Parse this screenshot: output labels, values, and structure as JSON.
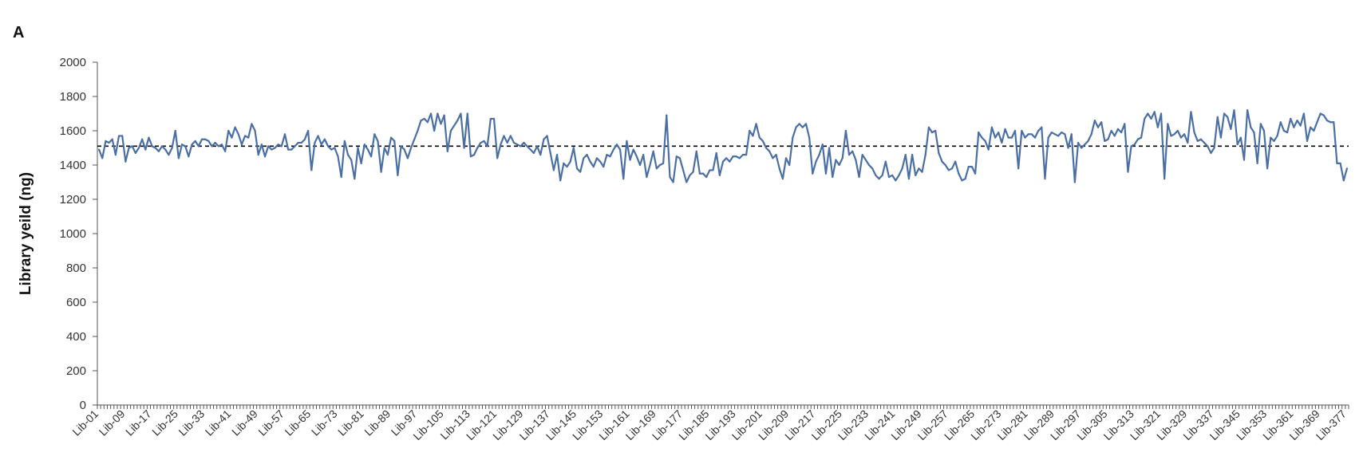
{
  "panel_label": "A",
  "colors": {
    "series": "#4a6fa5",
    "reference_line": "#000000",
    "axis": "#555555"
  },
  "chart_data": {
    "type": "line",
    "title": "",
    "xlabel": "",
    "ylabel": "Library yeild (ng)",
    "ylim": [
      0,
      2000
    ],
    "yticks": [
      0,
      200,
      400,
      600,
      800,
      1000,
      1200,
      1400,
      1600,
      1800,
      2000
    ],
    "grid": false,
    "legend": "none",
    "x_tick_labels": [
      "Lib-01",
      "Lib-09",
      "Lib-17",
      "Lib-25",
      "Lib-33",
      "Lib-41",
      "Lib-49",
      "Lib-57",
      "Lib-65",
      "Lib-73",
      "Lib-81",
      "Lib-89",
      "Lib-97",
      "Lib-105",
      "Lib-113",
      "Lib-121",
      "Lib-129",
      "Lib-137",
      "Lib-145",
      "Lib-153",
      "Lib-161",
      "Lib-169",
      "Lib-177",
      "Lib-185",
      "Lib-193",
      "Lib-201",
      "Lib-209",
      "Lib-217",
      "Lib-225",
      "Lib-233",
      "Lib-241",
      "Lib-249",
      "Lib-257",
      "Lib-265",
      "Lib-273",
      "Lib-281",
      "Lib-289",
      "Lib-297",
      "Lib-305",
      "Lib-313",
      "Lib-321",
      "Lib-329",
      "Lib-337",
      "Lib-345",
      "Lib-353",
      "Lib-361",
      "Lib-369",
      "Lib-377"
    ],
    "reference_line": {
      "y": 1510,
      "style": "dashed"
    },
    "series": [
      {
        "values": [
          1490,
          1440,
          1540,
          1530,
          1550,
          1460,
          1570,
          1570,
          1420,
          1500,
          1510,
          1470,
          1500,
          1550,
          1490,
          1560,
          1510,
          1500,
          1480,
          1510,
          1490,
          1460,
          1500,
          1600,
          1440,
          1520,
          1510,
          1450,
          1520,
          1540,
          1510,
          1550,
          1550,
          1540,
          1510,
          1530,
          1510,
          1520,
          1480,
          1600,
          1560,
          1620,
          1580,
          1520,
          1570,
          1560,
          1640,
          1600,
          1460,
          1520,
          1450,
          1510,
          1490,
          1500,
          1520,
          1510,
          1580,
          1490,
          1490,
          1510,
          1530,
          1530,
          1550,
          1600,
          1370,
          1530,
          1570,
          1520,
          1550,
          1510,
          1490,
          1500,
          1450,
          1330,
          1540,
          1460,
          1430,
          1320,
          1500,
          1410,
          1520,
          1490,
          1450,
          1580,
          1540,
          1360,
          1500,
          1460,
          1560,
          1540,
          1340,
          1510,
          1490,
          1440,
          1500,
          1550,
          1600,
          1660,
          1670,
          1650,
          1700,
          1600,
          1700,
          1640,
          1690,
          1480,
          1600,
          1630,
          1660,
          1700,
          1500,
          1700,
          1450,
          1460,
          1500,
          1530,
          1540,
          1510,
          1670,
          1670,
          1440,
          1520,
          1570,
          1530,
          1570,
          1530,
          1520,
          1510,
          1530,
          1510,
          1490,
          1470,
          1510,
          1460,
          1550,
          1570,
          1470,
          1370,
          1460,
          1310,
          1410,
          1390,
          1420,
          1500,
          1380,
          1360,
          1440,
          1460,
          1420,
          1390,
          1440,
          1420,
          1390,
          1460,
          1450,
          1490,
          1520,
          1490,
          1320,
          1540,
          1430,
          1490,
          1450,
          1400,
          1460,
          1330,
          1400,
          1480,
          1380,
          1400,
          1410,
          1690,
          1330,
          1300,
          1450,
          1440,
          1370,
          1300,
          1340,
          1360,
          1480,
          1350,
          1350,
          1330,
          1370,
          1370,
          1470,
          1340,
          1420,
          1440,
          1420,
          1450,
          1450,
          1440,
          1460,
          1460,
          1600,
          1570,
          1640,
          1560,
          1540,
          1500,
          1480,
          1440,
          1460,
          1380,
          1320,
          1440,
          1400,
          1560,
          1620,
          1640,
          1620,
          1640,
          1560,
          1350,
          1420,
          1460,
          1520,
          1350,
          1500,
          1330,
          1430,
          1400,
          1440,
          1600,
          1460,
          1480,
          1430,
          1330,
          1460,
          1430,
          1400,
          1380,
          1340,
          1320,
          1340,
          1420,
          1330,
          1340,
          1310,
          1340,
          1380,
          1460,
          1320,
          1460,
          1340,
          1380,
          1360,
          1460,
          1620,
          1590,
          1600,
          1470,
          1420,
          1400,
          1370,
          1380,
          1420,
          1350,
          1310,
          1320,
          1390,
          1390,
          1350,
          1590,
          1560,
          1540,
          1490,
          1620,
          1560,
          1590,
          1530,
          1610,
          1560,
          1560,
          1600,
          1380,
          1600,
          1560,
          1580,
          1580,
          1560,
          1600,
          1620,
          1320,
          1560,
          1590,
          1580,
          1570,
          1590,
          1580,
          1500,
          1580,
          1300,
          1530,
          1500,
          1520,
          1540,
          1580,
          1660,
          1620,
          1650,
          1540,
          1550,
          1600,
          1570,
          1610,
          1590,
          1640,
          1360,
          1510,
          1520,
          1550,
          1560,
          1670,
          1700,
          1670,
          1710,
          1620,
          1700,
          1320,
          1640,
          1570,
          1580,
          1600,
          1560,
          1580,
          1530,
          1710,
          1590,
          1540,
          1550,
          1530,
          1510,
          1470,
          1500,
          1680,
          1560,
          1700,
          1680,
          1610,
          1720,
          1520,
          1560,
          1430,
          1720,
          1620,
          1590,
          1410,
          1640,
          1600,
          1380,
          1560,
          1540,
          1570,
          1650,
          1600,
          1590,
          1670,
          1620,
          1660,
          1630,
          1700,
          1540,
          1620,
          1600,
          1650,
          1700,
          1690,
          1660,
          1650,
          1650,
          1410,
          1410,
          1310,
          1380
        ]
      }
    ]
  }
}
